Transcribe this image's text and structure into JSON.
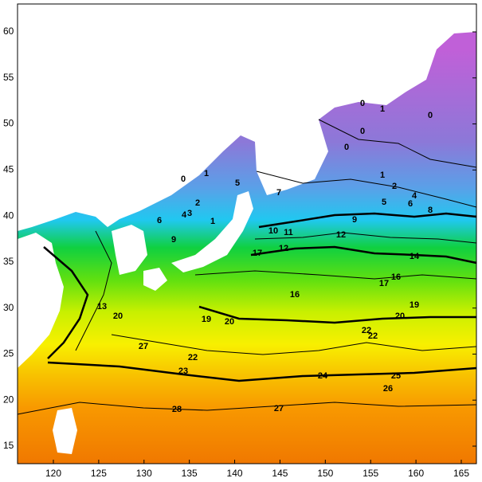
{
  "map": {
    "xticks": [
      120,
      125,
      130,
      135,
      140,
      145,
      150,
      155,
      160,
      165
    ],
    "yticks": [
      15,
      20,
      25,
      30,
      35,
      40,
      45,
      50,
      55,
      60
    ],
    "contour_labels": [
      "0",
      "1",
      "0",
      "0",
      "0",
      "1",
      "2",
      "4",
      "5",
      "6",
      "8",
      "9",
      "12",
      "14",
      "17",
      "16",
      "19",
      "20",
      "22",
      "22",
      "24",
      "25",
      "26",
      "27",
      "28",
      "23",
      "22",
      "20",
      "19",
      "16",
      "10",
      "11",
      "12",
      "17",
      "6",
      "9",
      "2",
      "3",
      "4",
      "1",
      "0",
      "1",
      "5",
      "7",
      "13",
      "20",
      "27"
    ]
  }
}
